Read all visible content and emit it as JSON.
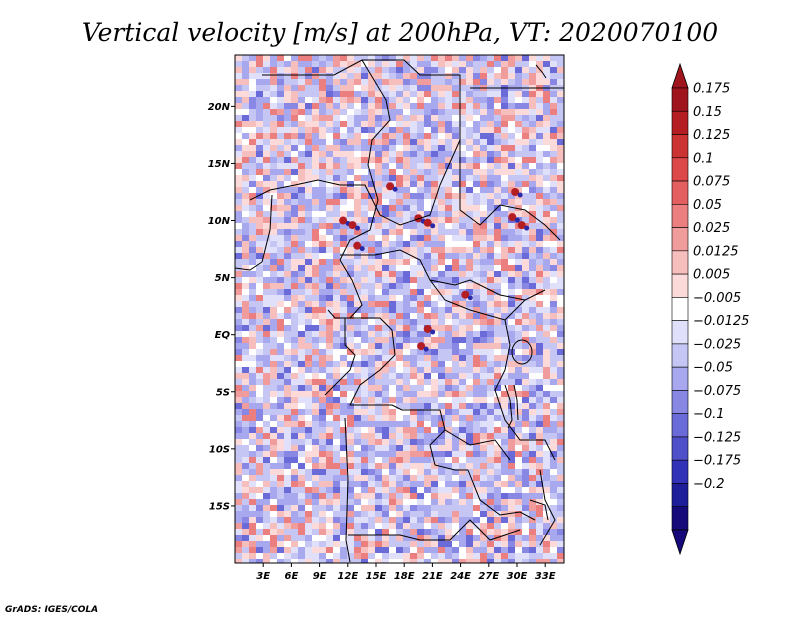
{
  "chart_data": {
    "type": "heatmap",
    "title": "Vertical velocity [m/s] at 200hPa, VT: 2020070100",
    "variable": "Vertical velocity",
    "units": "m/s",
    "level": "200hPa",
    "valid_time": "2020070100",
    "xlim": [
      0,
      35
    ],
    "ylim": [
      -20,
      24.5
    ],
    "x_ticks": [
      {
        "value": 3,
        "label": "3E"
      },
      {
        "value": 6,
        "label": "6E"
      },
      {
        "value": 9,
        "label": "9E"
      },
      {
        "value": 12,
        "label": "12E"
      },
      {
        "value": 15,
        "label": "15E"
      },
      {
        "value": 18,
        "label": "18E"
      },
      {
        "value": 21,
        "label": "21E"
      },
      {
        "value": 24,
        "label": "24E"
      },
      {
        "value": 27,
        "label": "27E"
      },
      {
        "value": 30,
        "label": "30E"
      },
      {
        "value": 33,
        "label": "33E"
      }
    ],
    "y_ticks": [
      {
        "value": 20,
        "label": "20N"
      },
      {
        "value": 15,
        "label": "15N"
      },
      {
        "value": 10,
        "label": "10N"
      },
      {
        "value": 5,
        "label": "5N"
      },
      {
        "value": 0,
        "label": "EQ"
      },
      {
        "value": -5,
        "label": "5S"
      },
      {
        "value": -10,
        "label": "10S"
      },
      {
        "value": -15,
        "label": "15S"
      }
    ],
    "colorbar": {
      "levels": [
        0.175,
        0.15,
        0.125,
        0.1,
        0.075,
        0.05,
        0.025,
        0.0125,
        0.005,
        -0.005,
        -0.0125,
        -0.025,
        -0.05,
        -0.075,
        -0.1,
        -0.125,
        -0.175,
        -0.2
      ],
      "labels": [
        "0.175",
        "0.15",
        "0.125",
        "0.1",
        "0.075",
        "0.05",
        "0.025",
        "0.0125",
        "0.005",
        "−0.005",
        "−0.0125",
        "−0.025",
        "−0.05",
        "−0.075",
        "−0.1",
        "−0.125",
        "−0.175",
        "−0.2"
      ],
      "colors": [
        "#a0141e",
        "#b41e23",
        "#cc3333",
        "#dd4848",
        "#e46060",
        "#eb7f7f",
        "#f19c9c",
        "#f7bebe",
        "#fcdada",
        "#ffffff",
        "#e0e0fb",
        "#c6c6f4",
        "#a8a8ee",
        "#8888e4",
        "#6a6ad8",
        "#4f4fca",
        "#3232b8",
        "#1e1e9a",
        "#160a7a"
      ],
      "overflow_top_color": "#a0141e",
      "overflow_bottom_color": "#160a7a"
    },
    "notes": "Noisy mixed field; weakly negative (blue) dominant, positive (red) cores near 10N 11-13E, 19-21E, 29-31E and around 1N 20E."
  },
  "footer": {
    "credit": "GrADS: IGES/COLA"
  }
}
